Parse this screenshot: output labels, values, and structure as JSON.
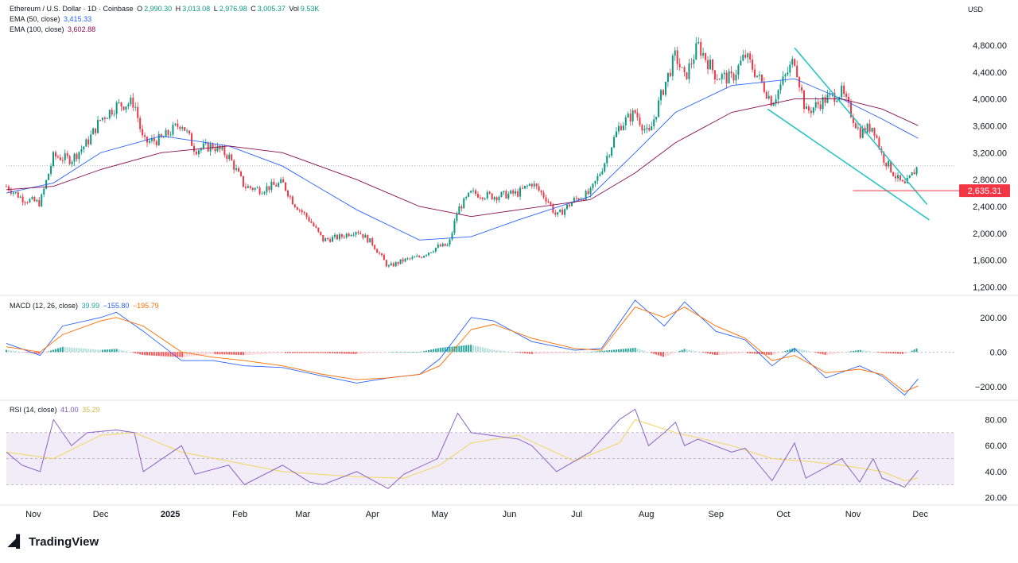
{
  "header": {
    "symbol": "Ethereum / U.S. Dollar · 1D · Coinbase",
    "o_label": "O",
    "o_value": "2,990.30",
    "h_label": "H",
    "h_value": "3,013.08",
    "l_label": "L",
    "l_value": "2,976.98",
    "c_label": "C",
    "c_value": "3,005.37",
    "vol_label": "Vol",
    "vol_value": "9.53K",
    "currency": "USD"
  },
  "indicators": {
    "ema50": {
      "label": "EMA (50, close)",
      "value": "3,415.33",
      "color": "#2962ff"
    },
    "ema100": {
      "label": "EMA (100, close)",
      "value": "3,602.88",
      "color": "#880e4f"
    },
    "macd": {
      "label": "MACD (12, 26, close)",
      "hist": "39.99",
      "macd": "−155.80",
      "signal": "−195.79"
    },
    "rsi": {
      "label": "RSI (14, close)",
      "rsi": "41.00",
      "ma": "35.29"
    }
  },
  "branding": {
    "name": "TradingView"
  },
  "colors": {
    "up": "#089981",
    "down": "#f23645",
    "channel": "#2bc4c4",
    "rsi_band": "#ede7f6"
  },
  "chart_data": [
    {
      "type": "candlestick",
      "title": "Ethereum / U.S. Dollar",
      "ylim": [
        1100,
        5000
      ],
      "y_ticks": [
        "4,800.00",
        "4,400.00",
        "4,000.00",
        "3,600.00",
        "3,200.00",
        "2,800.00",
        "2,400.00",
        "2,000.00",
        "1,600.00",
        "1,200.00"
      ],
      "y_tick_values": [
        4800,
        4400,
        4000,
        3600,
        3200,
        2800,
        2400,
        2000,
        1600,
        1200
      ],
      "x_ticks": [
        "Nov",
        "Dec",
        "2025",
        "Feb",
        "Mar",
        "Apr",
        "May",
        "Jun",
        "Jul",
        "Aug",
        "Sep",
        "Oct",
        "Nov",
        "Dec"
      ],
      "x_tick_dates": [
        "2024-11-01",
        "2024-12-01",
        "2025-01-01",
        "2025-02-01",
        "2025-03-01",
        "2025-04-01",
        "2025-05-01",
        "2025-06-01",
        "2025-07-01",
        "2025-08-01",
        "2025-09-01",
        "2025-10-01",
        "2025-11-01",
        "2025-12-01"
      ],
      "x_range": [
        "2024-10-20",
        "2025-12-02"
      ],
      "close_path": [
        [
          "2024-10-20",
          2700
        ],
        [
          "2024-10-27",
          2520
        ],
        [
          "2024-11-04",
          2450
        ],
        [
          "2024-11-10",
          3150
        ],
        [
          "2024-11-18",
          3100
        ],
        [
          "2024-11-25",
          3350
        ],
        [
          "2024-12-01",
          3700
        ],
        [
          "2024-12-08",
          3900
        ],
        [
          "2024-12-16",
          3950
        ],
        [
          "2024-12-20",
          3350
        ],
        [
          "2024-12-28",
          3400
        ],
        [
          "2025-01-06",
          3650
        ],
        [
          "2025-01-12",
          3250
        ],
        [
          "2025-01-20",
          3300
        ],
        [
          "2025-01-27",
          3150
        ],
        [
          "2025-02-03",
          2700
        ],
        [
          "2025-02-10",
          2650
        ],
        [
          "2025-02-20",
          2750
        ],
        [
          "2025-02-25",
          2450
        ],
        [
          "2025-03-04",
          2200
        ],
        [
          "2025-03-10",
          1900
        ],
        [
          "2025-03-18",
          1950
        ],
        [
          "2025-03-25",
          2050
        ],
        [
          "2025-04-01",
          1850
        ],
        [
          "2025-04-08",
          1500
        ],
        [
          "2025-04-15",
          1600
        ],
        [
          "2025-04-22",
          1650
        ],
        [
          "2025-04-30",
          1800
        ],
        [
          "2025-05-05",
          1820
        ],
        [
          "2025-05-09",
          2350
        ],
        [
          "2025-05-15",
          2600
        ],
        [
          "2025-05-25",
          2550
        ],
        [
          "2025-06-05",
          2600
        ],
        [
          "2025-06-11",
          2750
        ],
        [
          "2025-06-18",
          2500
        ],
        [
          "2025-06-22",
          2250
        ],
        [
          "2025-06-30",
          2500
        ],
        [
          "2025-07-07",
          2600
        ],
        [
          "2025-07-12",
          2950
        ],
        [
          "2025-07-20",
          3600
        ],
        [
          "2025-07-27",
          3800
        ],
        [
          "2025-08-02",
          3450
        ],
        [
          "2025-08-09",
          4200
        ],
        [
          "2025-08-14",
          4650
        ],
        [
          "2025-08-18",
          4300
        ],
        [
          "2025-08-24",
          4800
        ],
        [
          "2025-09-01",
          4350
        ],
        [
          "2025-09-08",
          4300
        ],
        [
          "2025-09-14",
          4650
        ],
        [
          "2025-09-22",
          4200
        ],
        [
          "2025-09-26",
          3950
        ],
        [
          "2025-10-06",
          4600
        ],
        [
          "2025-10-11",
          3800
        ],
        [
          "2025-10-20",
          4000
        ],
        [
          "2025-10-27",
          4100
        ],
        [
          "2025-11-04",
          3500
        ],
        [
          "2025-11-10",
          3600
        ],
        [
          "2025-11-14",
          3150
        ],
        [
          "2025-11-21",
          2800
        ],
        [
          "2025-11-24",
          2700
        ],
        [
          "2025-11-30",
          3005
        ]
      ],
      "series": [
        {
          "name": "EMA (50, close)",
          "points": [
            [
              "2024-10-20",
              2600
            ],
            [
              "2024-11-10",
              2750
            ],
            [
              "2024-12-01",
              3200
            ],
            [
              "2024-12-28",
              3450
            ],
            [
              "2025-01-27",
              3300
            ],
            [
              "2025-02-20",
              3000
            ],
            [
              "2025-03-25",
              2350
            ],
            [
              "2025-04-22",
              1900
            ],
            [
              "2025-05-15",
              1950
            ],
            [
              "2025-06-05",
              2200
            ],
            [
              "2025-07-07",
              2550
            ],
            [
              "2025-07-27",
              3200
            ],
            [
              "2025-08-14",
              3800
            ],
            [
              "2025-09-08",
              4200
            ],
            [
              "2025-10-06",
              4300
            ],
            [
              "2025-10-27",
              4000
            ],
            [
              "2025-11-14",
              3700
            ],
            [
              "2025-11-30",
              3415
            ]
          ]
        },
        {
          "name": "EMA (100, close)",
          "points": [
            [
              "2024-10-20",
              2650
            ],
            [
              "2024-11-10",
              2700
            ],
            [
              "2024-12-01",
              2950
            ],
            [
              "2024-12-28",
              3200
            ],
            [
              "2025-01-27",
              3300
            ],
            [
              "2025-02-20",
              3200
            ],
            [
              "2025-03-25",
              2800
            ],
            [
              "2025-04-22",
              2400
            ],
            [
              "2025-05-15",
              2250
            ],
            [
              "2025-06-05",
              2350
            ],
            [
              "2025-07-07",
              2500
            ],
            [
              "2025-07-27",
              2900
            ],
            [
              "2025-08-14",
              3350
            ],
            [
              "2025-09-08",
              3800
            ],
            [
              "2025-10-06",
              4000
            ],
            [
              "2025-10-27",
              4000
            ],
            [
              "2025-11-14",
              3850
            ],
            [
              "2025-11-30",
              3603
            ]
          ]
        }
      ],
      "channel_upper": [
        [
          "2025-10-06",
          4760
        ],
        [
          "2025-12-04",
          2430
        ]
      ],
      "channel_lower": [
        [
          "2025-09-24",
          3850
        ],
        [
          "2025-12-05",
          2200
        ]
      ],
      "support_line": {
        "value": 2635.31,
        "label": "2,635.31",
        "from": "2025-11-01"
      },
      "last_price": 3005.37
    },
    {
      "type": "macd",
      "title": "MACD (12, 26, close)",
      "ylim": [
        -270,
        300
      ],
      "y_ticks": [
        "200.00",
        "0.00",
        "−200.00"
      ],
      "y_tick_values": [
        200,
        0,
        -200
      ],
      "macd_line": [
        [
          "2024-10-20",
          50
        ],
        [
          "2024-11-04",
          -20
        ],
        [
          "2024-11-14",
          150
        ],
        [
          "2024-12-01",
          200
        ],
        [
          "2024-12-08",
          230
        ],
        [
          "2024-12-20",
          120
        ],
        [
          "2025-01-06",
          -50
        ],
        [
          "2025-01-20",
          -50
        ],
        [
          "2025-02-03",
          -80
        ],
        [
          "2025-02-20",
          -90
        ],
        [
          "2025-03-10",
          -140
        ],
        [
          "2025-03-25",
          -180
        ],
        [
          "2025-04-08",
          -150
        ],
        [
          "2025-04-22",
          -130
        ],
        [
          "2025-05-01",
          -40
        ],
        [
          "2025-05-15",
          200
        ],
        [
          "2025-05-25",
          180
        ],
        [
          "2025-06-11",
          60
        ],
        [
          "2025-06-30",
          10
        ],
        [
          "2025-07-12",
          20
        ],
        [
          "2025-07-27",
          300
        ],
        [
          "2025-08-09",
          150
        ],
        [
          "2025-08-18",
          290
        ],
        [
          "2025-09-01",
          120
        ],
        [
          "2025-09-14",
          70
        ],
        [
          "2025-09-26",
          -80
        ],
        [
          "2025-10-06",
          20
        ],
        [
          "2025-10-20",
          -150
        ],
        [
          "2025-11-04",
          -80
        ],
        [
          "2025-11-14",
          -140
        ],
        [
          "2025-11-24",
          -250
        ],
        [
          "2025-11-30",
          -156
        ]
      ],
      "signal_line": [
        [
          "2024-10-20",
          30
        ],
        [
          "2024-11-04",
          0
        ],
        [
          "2024-11-14",
          100
        ],
        [
          "2024-12-01",
          180
        ],
        [
          "2024-12-08",
          200
        ],
        [
          "2024-12-20",
          150
        ],
        [
          "2025-01-06",
          0
        ],
        [
          "2025-01-20",
          -30
        ],
        [
          "2025-02-03",
          -50
        ],
        [
          "2025-02-20",
          -80
        ],
        [
          "2025-03-10",
          -130
        ],
        [
          "2025-03-25",
          -160
        ],
        [
          "2025-04-08",
          -150
        ],
        [
          "2025-04-22",
          -130
        ],
        [
          "2025-05-01",
          -80
        ],
        [
          "2025-05-15",
          130
        ],
        [
          "2025-05-25",
          160
        ],
        [
          "2025-06-11",
          80
        ],
        [
          "2025-06-30",
          20
        ],
        [
          "2025-07-12",
          10
        ],
        [
          "2025-07-27",
          260
        ],
        [
          "2025-08-09",
          200
        ],
        [
          "2025-08-18",
          260
        ],
        [
          "2025-09-01",
          150
        ],
        [
          "2025-09-14",
          80
        ],
        [
          "2025-09-26",
          -50
        ],
        [
          "2025-10-06",
          -20
        ],
        [
          "2025-10-20",
          -120
        ],
        [
          "2025-11-04",
          -100
        ],
        [
          "2025-11-14",
          -130
        ],
        [
          "2025-11-24",
          -230
        ],
        [
          "2025-11-30",
          -196
        ]
      ],
      "histogram_last": 39.99
    },
    {
      "type": "rsi",
      "title": "RSI (14, close)",
      "ylim": [
        18,
        90
      ],
      "y_ticks": [
        "80.00",
        "60.00",
        "40.00",
        "20.00"
      ],
      "y_tick_values": [
        80,
        60,
        40,
        20
      ],
      "bands": {
        "upper": 70,
        "middle": 50,
        "lower": 30
      },
      "rsi_line": [
        [
          "2024-10-20",
          55
        ],
        [
          "2024-10-27",
          45
        ],
        [
          "2024-11-04",
          40
        ],
        [
          "2024-11-10",
          80
        ],
        [
          "2024-11-18",
          60
        ],
        [
          "2024-11-25",
          70
        ],
        [
          "2024-12-08",
          72
        ],
        [
          "2024-12-16",
          70
        ],
        [
          "2024-12-20",
          40
        ],
        [
          "2025-01-06",
          60
        ],
        [
          "2025-01-12",
          38
        ],
        [
          "2025-01-27",
          45
        ],
        [
          "2025-02-03",
          30
        ],
        [
          "2025-02-20",
          45
        ],
        [
          "2025-03-04",
          32
        ],
        [
          "2025-03-10",
          30
        ],
        [
          "2025-03-25",
          40
        ],
        [
          "2025-04-08",
          27
        ],
        [
          "2025-04-15",
          38
        ],
        [
          "2025-04-30",
          50
        ],
        [
          "2025-05-09",
          85
        ],
        [
          "2025-05-15",
          70
        ],
        [
          "2025-06-05",
          65
        ],
        [
          "2025-06-11",
          60
        ],
        [
          "2025-06-22",
          40
        ],
        [
          "2025-07-07",
          55
        ],
        [
          "2025-07-20",
          80
        ],
        [
          "2025-07-27",
          88
        ],
        [
          "2025-08-02",
          60
        ],
        [
          "2025-08-09",
          70
        ],
        [
          "2025-08-14",
          78
        ],
        [
          "2025-08-18",
          60
        ],
        [
          "2025-08-24",
          65
        ],
        [
          "2025-09-08",
          55
        ],
        [
          "2025-09-14",
          58
        ],
        [
          "2025-09-26",
          33
        ],
        [
          "2025-10-06",
          62
        ],
        [
          "2025-10-11",
          35
        ],
        [
          "2025-10-27",
          50
        ],
        [
          "2025-11-04",
          32
        ],
        [
          "2025-11-10",
          50
        ],
        [
          "2025-11-14",
          35
        ],
        [
          "2025-11-24",
          28
        ],
        [
          "2025-11-30",
          41
        ]
      ],
      "rsi_ma_line": [
        [
          "2024-10-20",
          55
        ],
        [
          "2024-11-10",
          50
        ],
        [
          "2024-12-01",
          68
        ],
        [
          "2024-12-16",
          70
        ],
        [
          "2025-01-06",
          55
        ],
        [
          "2025-01-27",
          48
        ],
        [
          "2025-02-20",
          40
        ],
        [
          "2025-03-25",
          36
        ],
        [
          "2025-04-15",
          35
        ],
        [
          "2025-05-01",
          45
        ],
        [
          "2025-05-15",
          62
        ],
        [
          "2025-06-05",
          68
        ],
        [
          "2025-06-30",
          48
        ],
        [
          "2025-07-20",
          62
        ],
        [
          "2025-07-27",
          80
        ],
        [
          "2025-08-14",
          70
        ],
        [
          "2025-09-08",
          60
        ],
        [
          "2025-09-26",
          50
        ],
        [
          "2025-10-11",
          48
        ],
        [
          "2025-10-27",
          45
        ],
        [
          "2025-11-14",
          40
        ],
        [
          "2025-11-24",
          33
        ],
        [
          "2025-11-30",
          35
        ]
      ]
    }
  ]
}
